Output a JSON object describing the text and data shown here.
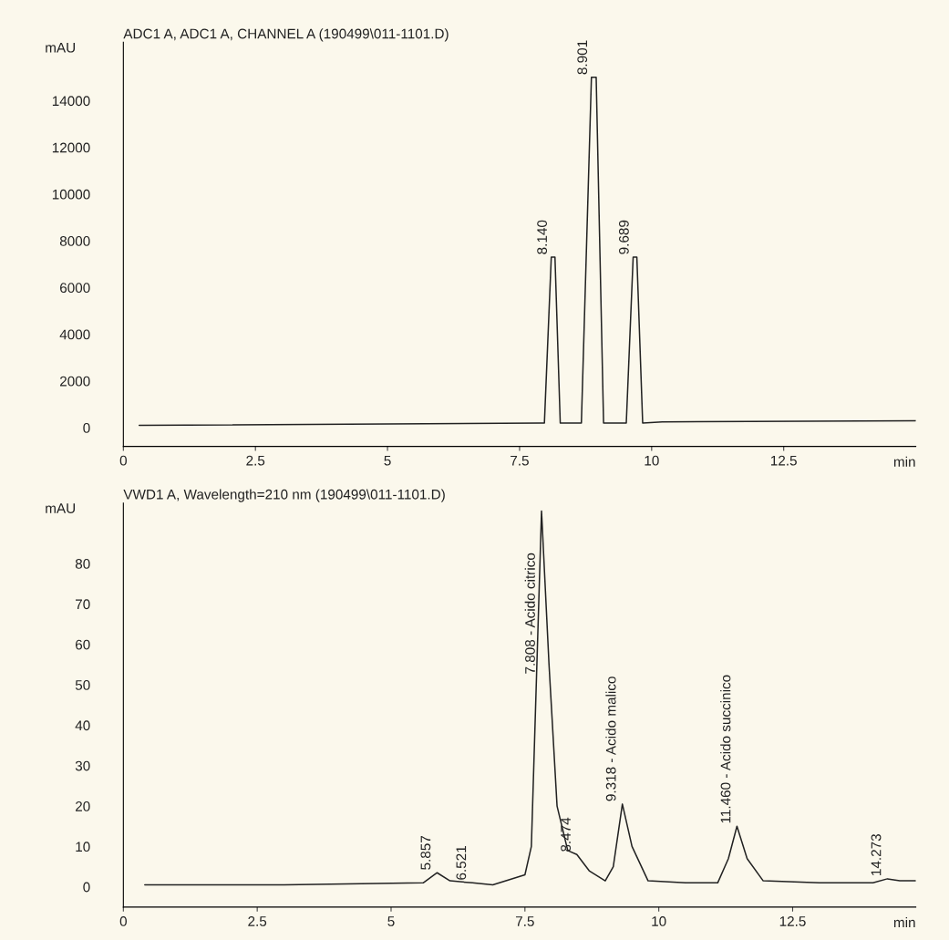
{
  "chart_data": [
    {
      "type": "line",
      "title": "ADC1 A, ADC1 A, CHANNEL A (190499\\011-1101.D)",
      "ylabel": "mAU",
      "xlabel": "min",
      "xlim": [
        0,
        15
      ],
      "ylim": [
        -800,
        16500
      ],
      "xticks": [
        0,
        2.5,
        5,
        7.5,
        10,
        12.5
      ],
      "yticks": [
        0,
        2000,
        4000,
        6000,
        8000,
        10000,
        12000,
        14000
      ],
      "grid": false,
      "series": [
        {
          "color": "#222222",
          "x": [
            0.3,
            7.9,
            7.97,
            8.1,
            8.17,
            8.27,
            8.35,
            8.67,
            8.86,
            8.95,
            9.09,
            9.3,
            9.52,
            9.65,
            9.72,
            9.83,
            10.2,
            15
          ],
          "values": [
            100,
            200,
            200,
            7300,
            7300,
            200,
            200,
            200,
            15000,
            15000,
            200,
            200,
            200,
            7300,
            7300,
            200,
            250,
            300
          ]
        }
      ],
      "annotations": [
        {
          "text": "8.140",
          "x": 8.14,
          "y": 7300
        },
        {
          "text": "8.901",
          "x": 8.901,
          "y": 15000
        },
        {
          "text": "9.689",
          "x": 9.689,
          "y": 7300
        }
      ]
    },
    {
      "type": "line",
      "title": "VWD1 A, Wavelength=210 nm (190499\\011-1101.D)",
      "ylabel": "mAU",
      "xlabel": "min",
      "xlim": [
        0,
        14.8
      ],
      "ylim": [
        -5,
        95
      ],
      "xticks": [
        0,
        2.5,
        5,
        7.5,
        10,
        12.5
      ],
      "yticks": [
        0,
        10,
        20,
        30,
        40,
        50,
        60,
        70,
        80
      ],
      "grid": false,
      "series": [
        {
          "color": "#222222",
          "x": [
            0.4,
            3,
            5.6,
            5.86,
            6.1,
            6.52,
            6.9,
            7.5,
            7.62,
            7.81,
            7.95,
            8.1,
            8.3,
            8.47,
            8.7,
            9.0,
            9.15,
            9.32,
            9.5,
            9.8,
            10.5,
            11.1,
            11.3,
            11.46,
            11.65,
            11.95,
            13,
            14.0,
            14.27,
            14.5,
            14.8
          ],
          "values": [
            0.5,
            0.5,
            1,
            3.5,
            1.5,
            1,
            0.5,
            3,
            10,
            93,
            55,
            20,
            9,
            8,
            4,
            1.5,
            5,
            20.5,
            10,
            1.5,
            1,
            1,
            7,
            15,
            7,
            1.5,
            1,
            1,
            2,
            1.5,
            1.5
          ]
        }
      ],
      "annotations": [
        {
          "text": "5.857",
          "x": 5.857,
          "y": 3.5
        },
        {
          "text": "6.521",
          "x": 6.52,
          "y": 1
        },
        {
          "text": "7.808 - Acido citrico",
          "x": 7.808,
          "y": 52
        },
        {
          "text": "8.474",
          "x": 8.474,
          "y": 8
        },
        {
          "text": "9.318 - Acido malico",
          "x": 9.318,
          "y": 20.5
        },
        {
          "text": "11.460 - Acido succinico",
          "x": 11.46,
          "y": 15
        },
        {
          "text": "14.273",
          "x": 14.27,
          "y": 2
        }
      ]
    }
  ]
}
